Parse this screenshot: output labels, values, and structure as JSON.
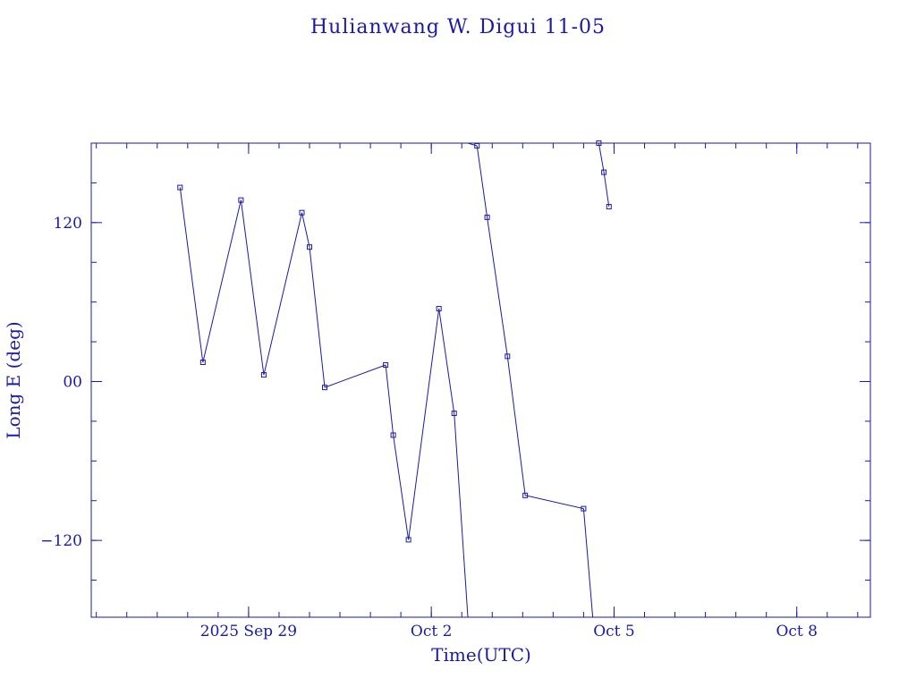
{
  "chart_data": {
    "type": "line",
    "title": "Hulianwang W. Digui 11-05",
    "xlabel": "Time(UTC)",
    "ylabel": "Long E (deg)",
    "ylim": [
      -178,
      180
    ],
    "xlim": [
      "2025-09-26T10:00",
      "2025-10-09T05:00"
    ],
    "x_tick_labels": [
      {
        "at": "2025-09-29",
        "label": "2025 Sep 29"
      },
      {
        "at": "2025-10-02",
        "label": "Oct  2"
      },
      {
        "at": "2025-10-05",
        "label": "Oct  5"
      },
      {
        "at": "2025-10-08",
        "label": "Oct  8"
      }
    ],
    "y_tick_labels": [
      {
        "at": 120,
        "label": "120"
      },
      {
        "at": 0,
        "label": "00"
      },
      {
        "at": -120,
        "label": "−120"
      }
    ],
    "colors": {
      "ink": "#1a1aa6"
    },
    "series": [
      {
        "x": [
          "2025-09-27T21:00",
          "2025-09-28T06:00",
          "2025-09-28T21:00",
          "2025-09-29T06:00",
          "2025-09-29T21:00",
          "2025-09-30T00:00",
          "2025-09-30T06:00",
          "2025-10-01T06:00",
          "2025-10-01T09:00",
          "2025-10-01T15:00",
          "2025-10-02T03:00",
          "2025-10-02T09:00",
          "2025-10-02T18:00",
          "2025-10-02T22:00",
          "2025-10-03T06:00",
          "2025-10-03T13:00",
          "2025-10-04T12:00",
          "2025-10-04T18:00",
          "2025-10-04T20:00",
          "2025-10-04T22:00"
        ],
        "y": [
          146.5,
          14.5,
          137,
          5,
          127.5,
          101.5,
          -4.5,
          12.5,
          -40.5,
          -119.5,
          55,
          -24,
          178,
          124,
          19,
          -86,
          -96,
          180,
          158,
          132
        ],
        "breaks_after": [
          11,
          16
        ]
      }
    ]
  }
}
